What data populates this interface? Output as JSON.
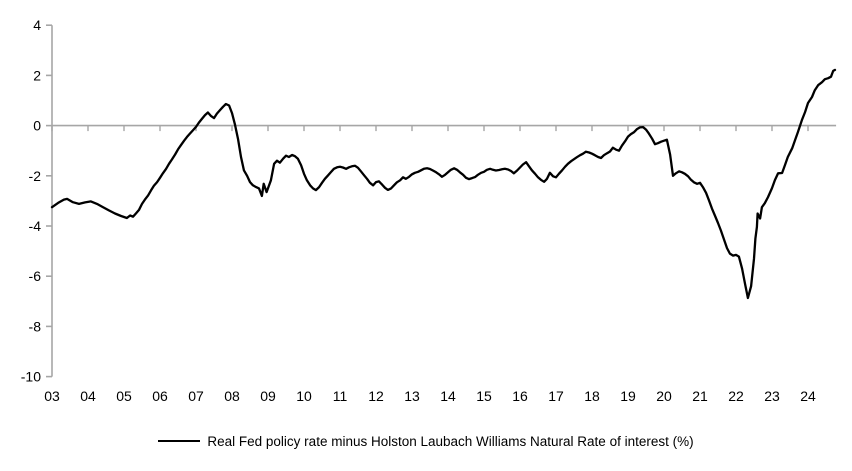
{
  "legend": {
    "label": "Real Fed policy rate minus Holston Laubach Williams Natural Rate of interest (%)"
  },
  "colors": {
    "line": "#000000",
    "axis": "#a6a6a6",
    "text": "#000000",
    "background": "#ffffff"
  },
  "chart_data": {
    "type": "line",
    "title": "",
    "xlabel": "",
    "ylabel": "",
    "ylim": [
      -10,
      4
    ],
    "xlim": [
      2003,
      2024.78
    ],
    "yticks": [
      4,
      2,
      0,
      -2,
      -4,
      -6,
      -8,
      -10
    ],
    "xtick_years": [
      2003,
      2004,
      2005,
      2006,
      2007,
      2008,
      2009,
      2010,
      2011,
      2012,
      2013,
      2014,
      2015,
      2016,
      2017,
      2018,
      2019,
      2020,
      2021,
      2022,
      2023,
      2024
    ],
    "xtick_labels": [
      "03",
      "04",
      "05",
      "06",
      "07",
      "08",
      "09",
      "10",
      "11",
      "12",
      "13",
      "14",
      "15",
      "16",
      "17",
      "18",
      "19",
      "20",
      "21",
      "22",
      "23",
      "24"
    ],
    "grid": false,
    "zero_line": true,
    "legend_position": "bottom",
    "series": [
      {
        "name": "Real Fed policy rate minus Holston Laubach Williams Natural Rate of interest (%)",
        "color": "#000000",
        "points": [
          [
            2003.0,
            -3.25
          ],
          [
            2003.17,
            -3.08
          ],
          [
            2003.33,
            -2.95
          ],
          [
            2003.42,
            -2.92
          ],
          [
            2003.58,
            -3.05
          ],
          [
            2003.75,
            -3.12
          ],
          [
            2003.92,
            -3.06
          ],
          [
            2004.08,
            -3.02
          ],
          [
            2004.25,
            -3.12
          ],
          [
            2004.42,
            -3.25
          ],
          [
            2004.58,
            -3.38
          ],
          [
            2004.75,
            -3.5
          ],
          [
            2004.92,
            -3.6
          ],
          [
            2005.08,
            -3.68
          ],
          [
            2005.17,
            -3.58
          ],
          [
            2005.25,
            -3.63
          ],
          [
            2005.33,
            -3.5
          ],
          [
            2005.42,
            -3.35
          ],
          [
            2005.5,
            -3.12
          ],
          [
            2005.58,
            -2.95
          ],
          [
            2005.67,
            -2.78
          ],
          [
            2005.75,
            -2.58
          ],
          [
            2005.83,
            -2.4
          ],
          [
            2005.92,
            -2.25
          ],
          [
            2006.0,
            -2.08
          ],
          [
            2006.08,
            -1.9
          ],
          [
            2006.17,
            -1.72
          ],
          [
            2006.25,
            -1.52
          ],
          [
            2006.33,
            -1.35
          ],
          [
            2006.42,
            -1.15
          ],
          [
            2006.5,
            -0.95
          ],
          [
            2006.58,
            -0.78
          ],
          [
            2006.67,
            -0.6
          ],
          [
            2006.75,
            -0.45
          ],
          [
            2006.83,
            -0.32
          ],
          [
            2006.92,
            -0.18
          ],
          [
            2007.0,
            -0.05
          ],
          [
            2007.08,
            0.12
          ],
          [
            2007.17,
            0.28
          ],
          [
            2007.25,
            0.42
          ],
          [
            2007.33,
            0.52
          ],
          [
            2007.42,
            0.38
          ],
          [
            2007.5,
            0.3
          ],
          [
            2007.58,
            0.48
          ],
          [
            2007.67,
            0.62
          ],
          [
            2007.75,
            0.75
          ],
          [
            2007.83,
            0.86
          ],
          [
            2007.92,
            0.8
          ],
          [
            2008.0,
            0.5
          ],
          [
            2008.08,
            0.05
          ],
          [
            2008.17,
            -0.55
          ],
          [
            2008.25,
            -1.25
          ],
          [
            2008.33,
            -1.78
          ],
          [
            2008.42,
            -2.0
          ],
          [
            2008.5,
            -2.25
          ],
          [
            2008.58,
            -2.38
          ],
          [
            2008.67,
            -2.45
          ],
          [
            2008.75,
            -2.5
          ],
          [
            2008.83,
            -2.8
          ],
          [
            2008.88,
            -2.32
          ],
          [
            2008.96,
            -2.65
          ],
          [
            2009.08,
            -2.18
          ],
          [
            2009.17,
            -1.52
          ],
          [
            2009.25,
            -1.4
          ],
          [
            2009.33,
            -1.48
          ],
          [
            2009.42,
            -1.32
          ],
          [
            2009.5,
            -1.2
          ],
          [
            2009.58,
            -1.25
          ],
          [
            2009.67,
            -1.17
          ],
          [
            2009.75,
            -1.22
          ],
          [
            2009.83,
            -1.32
          ],
          [
            2009.92,
            -1.58
          ],
          [
            2010.0,
            -1.92
          ],
          [
            2010.08,
            -2.18
          ],
          [
            2010.17,
            -2.38
          ],
          [
            2010.25,
            -2.5
          ],
          [
            2010.33,
            -2.57
          ],
          [
            2010.42,
            -2.45
          ],
          [
            2010.5,
            -2.28
          ],
          [
            2010.58,
            -2.12
          ],
          [
            2010.67,
            -1.98
          ],
          [
            2010.75,
            -1.85
          ],
          [
            2010.83,
            -1.72
          ],
          [
            2010.92,
            -1.66
          ],
          [
            2011.0,
            -1.64
          ],
          [
            2011.08,
            -1.67
          ],
          [
            2011.17,
            -1.72
          ],
          [
            2011.25,
            -1.66
          ],
          [
            2011.33,
            -1.62
          ],
          [
            2011.42,
            -1.6
          ],
          [
            2011.5,
            -1.68
          ],
          [
            2011.58,
            -1.82
          ],
          [
            2011.67,
            -1.98
          ],
          [
            2011.75,
            -2.12
          ],
          [
            2011.83,
            -2.28
          ],
          [
            2011.92,
            -2.38
          ],
          [
            2012.0,
            -2.25
          ],
          [
            2012.08,
            -2.22
          ],
          [
            2012.17,
            -2.35
          ],
          [
            2012.25,
            -2.48
          ],
          [
            2012.33,
            -2.56
          ],
          [
            2012.42,
            -2.5
          ],
          [
            2012.5,
            -2.38
          ],
          [
            2012.58,
            -2.26
          ],
          [
            2012.67,
            -2.18
          ],
          [
            2012.75,
            -2.06
          ],
          [
            2012.83,
            -2.12
          ],
          [
            2012.92,
            -2.04
          ],
          [
            2013.0,
            -1.94
          ],
          [
            2013.08,
            -1.88
          ],
          [
            2013.17,
            -1.84
          ],
          [
            2013.25,
            -1.78
          ],
          [
            2013.33,
            -1.72
          ],
          [
            2013.42,
            -1.7
          ],
          [
            2013.5,
            -1.73
          ],
          [
            2013.58,
            -1.79
          ],
          [
            2013.67,
            -1.86
          ],
          [
            2013.75,
            -1.94
          ],
          [
            2013.83,
            -2.04
          ],
          [
            2013.92,
            -1.96
          ],
          [
            2014.0,
            -1.86
          ],
          [
            2014.08,
            -1.76
          ],
          [
            2014.17,
            -1.7
          ],
          [
            2014.25,
            -1.76
          ],
          [
            2014.33,
            -1.86
          ],
          [
            2014.42,
            -1.96
          ],
          [
            2014.5,
            -2.08
          ],
          [
            2014.58,
            -2.13
          ],
          [
            2014.67,
            -2.09
          ],
          [
            2014.75,
            -2.05
          ],
          [
            2014.83,
            -1.96
          ],
          [
            2014.92,
            -1.88
          ],
          [
            2015.0,
            -1.84
          ],
          [
            2015.08,
            -1.76
          ],
          [
            2015.17,
            -1.72
          ],
          [
            2015.25,
            -1.76
          ],
          [
            2015.33,
            -1.79
          ],
          [
            2015.42,
            -1.77
          ],
          [
            2015.5,
            -1.74
          ],
          [
            2015.58,
            -1.72
          ],
          [
            2015.67,
            -1.75
          ],
          [
            2015.75,
            -1.81
          ],
          [
            2015.83,
            -1.9
          ],
          [
            2015.92,
            -1.79
          ],
          [
            2016.0,
            -1.67
          ],
          [
            2016.08,
            -1.55
          ],
          [
            2016.17,
            -1.46
          ],
          [
            2016.25,
            -1.62
          ],
          [
            2016.33,
            -1.78
          ],
          [
            2016.42,
            -1.92
          ],
          [
            2016.5,
            -2.06
          ],
          [
            2016.58,
            -2.16
          ],
          [
            2016.67,
            -2.24
          ],
          [
            2016.75,
            -2.12
          ],
          [
            2016.83,
            -1.88
          ],
          [
            2016.92,
            -2.02
          ],
          [
            2017.0,
            -2.06
          ],
          [
            2017.08,
            -1.92
          ],
          [
            2017.17,
            -1.78
          ],
          [
            2017.25,
            -1.64
          ],
          [
            2017.33,
            -1.52
          ],
          [
            2017.42,
            -1.42
          ],
          [
            2017.5,
            -1.34
          ],
          [
            2017.58,
            -1.26
          ],
          [
            2017.67,
            -1.18
          ],
          [
            2017.75,
            -1.12
          ],
          [
            2017.83,
            -1.04
          ],
          [
            2017.92,
            -1.07
          ],
          [
            2018.0,
            -1.12
          ],
          [
            2018.08,
            -1.18
          ],
          [
            2018.17,
            -1.25
          ],
          [
            2018.25,
            -1.29
          ],
          [
            2018.33,
            -1.18
          ],
          [
            2018.42,
            -1.1
          ],
          [
            2018.5,
            -1.03
          ],
          [
            2018.58,
            -0.88
          ],
          [
            2018.67,
            -0.96
          ],
          [
            2018.75,
            -1.0
          ],
          [
            2018.83,
            -0.8
          ],
          [
            2018.92,
            -0.62
          ],
          [
            2019.0,
            -0.44
          ],
          [
            2019.08,
            -0.34
          ],
          [
            2019.17,
            -0.26
          ],
          [
            2019.25,
            -0.14
          ],
          [
            2019.33,
            -0.07
          ],
          [
            2019.42,
            -0.06
          ],
          [
            2019.5,
            -0.16
          ],
          [
            2019.58,
            -0.32
          ],
          [
            2019.67,
            -0.52
          ],
          [
            2019.75,
            -0.74
          ],
          [
            2019.83,
            -0.7
          ],
          [
            2019.92,
            -0.64
          ],
          [
            2020.0,
            -0.6
          ],
          [
            2020.08,
            -0.56
          ],
          [
            2020.17,
            -1.15
          ],
          [
            2020.25,
            -2.0
          ],
          [
            2020.33,
            -1.9
          ],
          [
            2020.42,
            -1.82
          ],
          [
            2020.5,
            -1.86
          ],
          [
            2020.58,
            -1.92
          ],
          [
            2020.67,
            -2.02
          ],
          [
            2020.75,
            -2.16
          ],
          [
            2020.83,
            -2.26
          ],
          [
            2020.92,
            -2.32
          ],
          [
            2021.0,
            -2.28
          ],
          [
            2021.08,
            -2.45
          ],
          [
            2021.17,
            -2.68
          ],
          [
            2021.25,
            -2.98
          ],
          [
            2021.33,
            -3.3
          ],
          [
            2021.42,
            -3.6
          ],
          [
            2021.5,
            -3.88
          ],
          [
            2021.58,
            -4.18
          ],
          [
            2021.67,
            -4.55
          ],
          [
            2021.75,
            -4.88
          ],
          [
            2021.83,
            -5.1
          ],
          [
            2021.92,
            -5.18
          ],
          [
            2022.0,
            -5.15
          ],
          [
            2022.08,
            -5.22
          ],
          [
            2022.17,
            -5.7
          ],
          [
            2022.25,
            -6.3
          ],
          [
            2022.33,
            -6.87
          ],
          [
            2022.42,
            -6.4
          ],
          [
            2022.5,
            -5.3
          ],
          [
            2022.54,
            -4.5
          ],
          [
            2022.58,
            -4.04
          ],
          [
            2022.6,
            -3.5
          ],
          [
            2022.67,
            -3.7
          ],
          [
            2022.72,
            -3.25
          ],
          [
            2022.8,
            -3.09
          ],
          [
            2022.89,
            -2.85
          ],
          [
            2023.0,
            -2.49
          ],
          [
            2023.08,
            -2.17
          ],
          [
            2023.17,
            -1.9
          ],
          [
            2023.28,
            -1.89
          ],
          [
            2023.36,
            -1.57
          ],
          [
            2023.44,
            -1.25
          ],
          [
            2023.56,
            -0.9
          ],
          [
            2023.64,
            -0.58
          ],
          [
            2023.72,
            -0.26
          ],
          [
            2023.83,
            0.22
          ],
          [
            2023.92,
            0.54
          ],
          [
            2024.0,
            0.9
          ],
          [
            2024.11,
            1.14
          ],
          [
            2024.19,
            1.41
          ],
          [
            2024.28,
            1.61
          ],
          [
            2024.39,
            1.73
          ],
          [
            2024.47,
            1.85
          ],
          [
            2024.56,
            1.89
          ],
          [
            2024.64,
            1.95
          ],
          [
            2024.7,
            2.18
          ],
          [
            2024.75,
            2.22
          ]
        ]
      }
    ]
  }
}
